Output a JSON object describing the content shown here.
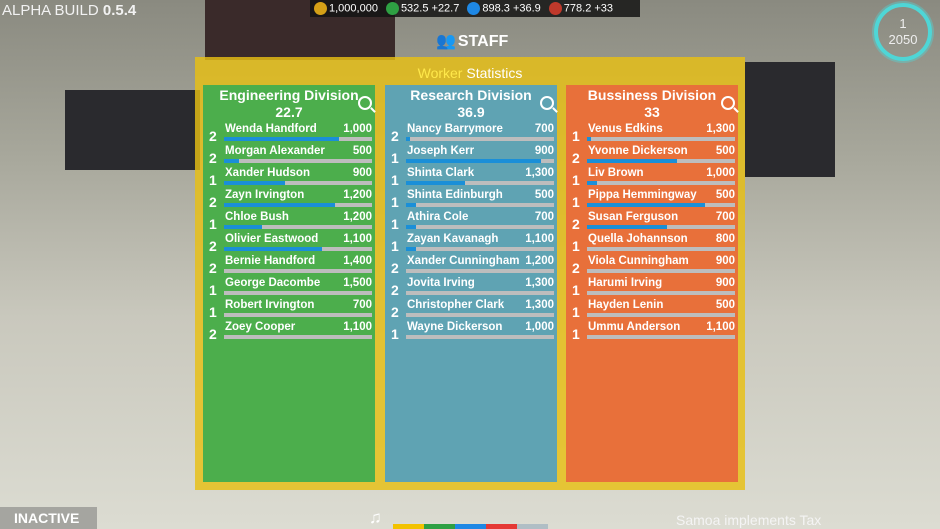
{
  "build": {
    "label": "ALPHA BUILD",
    "version": "0.5.4"
  },
  "resources": [
    {
      "icon": "coin-icon",
      "color": "#d4a017",
      "value": "1,000,000"
    },
    {
      "icon": "engineering-icon",
      "color": "#2ea043",
      "value": "532.5 +22.7"
    },
    {
      "icon": "research-flask-icon",
      "color": "#1e88e5",
      "value": "898.3 +36.9"
    },
    {
      "icon": "business-building-icon",
      "color": "#c0392b",
      "value": "778.2 +33"
    }
  ],
  "header": {
    "title": "STAFF",
    "icon": "staff-icon"
  },
  "date": {
    "turn": "1",
    "year": "2050"
  },
  "panel": {
    "title_highlight": "Worker",
    "title_rest": "Statistics"
  },
  "divisions": [
    {
      "name": "Engineering Division",
      "score": "22.7",
      "color": "#4cae4c",
      "workers": [
        {
          "level": "2",
          "name": "Wenda Handford",
          "salary": "1,000",
          "progress": 78
        },
        {
          "level": "2",
          "name": "Morgan Alexander",
          "salary": "500",
          "progress": 10
        },
        {
          "level": "1",
          "name": "Xander Hudson",
          "salary": "900",
          "progress": 41
        },
        {
          "level": "2",
          "name": "Zayn Irvington",
          "salary": "1,200",
          "progress": 75
        },
        {
          "level": "1",
          "name": "Chloe Bush",
          "salary": "1,200",
          "progress": 26
        },
        {
          "level": "2",
          "name": "Olivier Eastwood",
          "salary": "1,100",
          "progress": 66
        },
        {
          "level": "2",
          "name": "Bernie Handford",
          "salary": "1,400",
          "progress": 0
        },
        {
          "level": "1",
          "name": "George Dacombe",
          "salary": "1,500",
          "progress": 0
        },
        {
          "level": "1",
          "name": "Robert Irvington",
          "salary": "700",
          "progress": 0
        },
        {
          "level": "2",
          "name": "Zoey Cooper",
          "salary": "1,100",
          "progress": 0
        }
      ]
    },
    {
      "name": "Research Division",
      "score": "36.9",
      "color": "#5fa3b3",
      "workers": [
        {
          "level": "2",
          "name": "Nancy Barrymore",
          "salary": "700",
          "progress": 3
        },
        {
          "level": "1",
          "name": "Joseph Kerr",
          "salary": "900",
          "progress": 91
        },
        {
          "level": "1",
          "name": "Shinta Clark",
          "salary": "1,300",
          "progress": 40
        },
        {
          "level": "1",
          "name": "Shinta Edinburgh",
          "salary": "500",
          "progress": 7
        },
        {
          "level": "1",
          "name": "Athira Cole",
          "salary": "700",
          "progress": 7
        },
        {
          "level": "1",
          "name": "Zayan Kavanagh",
          "salary": "1,100",
          "progress": 7
        },
        {
          "level": "2",
          "name": "Xander Cunningham",
          "salary": "1,200",
          "progress": 0
        },
        {
          "level": "2",
          "name": "Jovita Irving",
          "salary": "1,300",
          "progress": 0
        },
        {
          "level": "2",
          "name": "Christopher Clark",
          "salary": "1,300",
          "progress": 0
        },
        {
          "level": "1",
          "name": "Wayne Dickerson",
          "salary": "1,000",
          "progress": 0
        }
      ]
    },
    {
      "name": "Bussiness Division",
      "score": "33",
      "color": "#e8703a",
      "workers": [
        {
          "level": "1",
          "name": "Venus Edkins",
          "salary": "1,300",
          "progress": 3
        },
        {
          "level": "2",
          "name": "Yvonne Dickerson",
          "salary": "500",
          "progress": 61
        },
        {
          "level": "1",
          "name": "Liv Brown",
          "salary": "1,000",
          "progress": 7
        },
        {
          "level": "1",
          "name": "Pippa Hemmingway",
          "salary": "500",
          "progress": 80
        },
        {
          "level": "2",
          "name": "Susan Ferguson",
          "salary": "700",
          "progress": 54
        },
        {
          "level": "1",
          "name": "Quella Johannson",
          "salary": "800",
          "progress": 0
        },
        {
          "level": "2",
          "name": "Viola Cunningham",
          "salary": "900",
          "progress": 0
        },
        {
          "level": "1",
          "name": "Harumi Irving",
          "salary": "900",
          "progress": 0
        },
        {
          "level": "1",
          "name": "Hayden Lenin",
          "salary": "500",
          "progress": 0
        },
        {
          "level": "1",
          "name": "Ummu Anderson",
          "salary": "1,100",
          "progress": 0
        }
      ]
    }
  ],
  "footer": {
    "status": "INACTIVE",
    "music_icon": "music-note-icon",
    "news": "Samoa implements Tax",
    "strip_colors": [
      "#f2c200",
      "#2ea043",
      "#1e88e5",
      "#e53935",
      "#b0bec5"
    ]
  }
}
